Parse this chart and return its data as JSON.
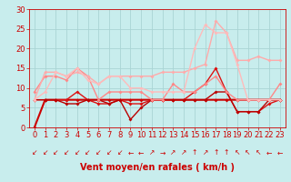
{
  "xlabel": "Vent moyen/en rafales ( km/h )",
  "xlim": [
    -0.5,
    23.5
  ],
  "ylim": [
    0,
    30
  ],
  "yticks": [
    0,
    5,
    10,
    15,
    20,
    25,
    30
  ],
  "xticks": [
    0,
    1,
    2,
    3,
    4,
    5,
    6,
    7,
    8,
    9,
    10,
    11,
    12,
    13,
    14,
    15,
    16,
    17,
    18,
    19,
    20,
    21,
    22,
    23
  ],
  "background_color": "#c8eded",
  "grid_color": "#aad4d4",
  "lines": [
    {
      "x": [
        0,
        1,
        2,
        3,
        4,
        5,
        6,
        7,
        8,
        9,
        10,
        11,
        12,
        13,
        14,
        15,
        16,
        17,
        18,
        19,
        20,
        21,
        22,
        23
      ],
      "y": [
        0,
        7,
        7,
        7,
        7,
        7,
        7,
        7,
        7,
        7,
        7,
        7,
        7,
        7,
        7,
        7,
        7,
        7,
        7,
        7,
        7,
        7,
        7,
        7
      ],
      "color": "#cc0000",
      "lw": 1.5,
      "marker": "D",
      "ms": 2.0
    },
    {
      "x": [
        0,
        1,
        2,
        3,
        4,
        5,
        6,
        7,
        8,
        9,
        10,
        11,
        12,
        13,
        14,
        15,
        16,
        17,
        18,
        19,
        20,
        21,
        22,
        23
      ],
      "y": [
        7,
        7,
        7,
        7,
        9,
        7,
        6,
        6,
        7,
        6,
        6,
        7,
        7,
        7,
        7,
        9,
        11,
        15,
        9,
        4,
        4,
        4,
        6,
        7
      ],
      "color": "#dd1111",
      "lw": 1.0,
      "marker": "D",
      "ms": 2.0
    },
    {
      "x": [
        0,
        1,
        2,
        3,
        4,
        5,
        6,
        7,
        8,
        9,
        10,
        11,
        12,
        13,
        14,
        15,
        16,
        17,
        18,
        19,
        20,
        21,
        22,
        23
      ],
      "y": [
        7,
        7,
        7,
        6,
        6,
        7,
        7,
        6,
        7,
        2,
        5,
        7,
        7,
        7,
        7,
        7,
        7,
        9,
        9,
        4,
        4,
        4,
        7,
        7
      ],
      "color": "#bb0000",
      "lw": 1.0,
      "marker": "D",
      "ms": 2.0
    },
    {
      "x": [
        0,
        1,
        2,
        3,
        4,
        5,
        6,
        7,
        8,
        9,
        10,
        11,
        12,
        13,
        14,
        15,
        16,
        17,
        18,
        19,
        20,
        21,
        22,
        23
      ],
      "y": [
        9,
        13,
        13,
        12,
        15,
        13,
        7,
        9,
        9,
        9,
        9,
        7,
        7,
        11,
        9,
        9,
        11,
        13,
        9,
        7,
        7,
        7,
        7,
        11
      ],
      "color": "#ff8888",
      "lw": 1.0,
      "marker": "D",
      "ms": 2.0
    },
    {
      "x": [
        0,
        1,
        2,
        3,
        4,
        5,
        6,
        7,
        8,
        9,
        10,
        11,
        12,
        13,
        14,
        15,
        16,
        17,
        18,
        19,
        20,
        21,
        22,
        23
      ],
      "y": [
        7,
        14,
        14,
        13,
        14,
        13,
        11,
        13,
        13,
        13,
        13,
        13,
        14,
        14,
        14,
        15,
        16,
        27,
        24,
        17,
        17,
        18,
        17,
        17
      ],
      "color": "#ffaaaa",
      "lw": 1.0,
      "marker": "D",
      "ms": 2.0
    },
    {
      "x": [
        0,
        1,
        2,
        3,
        4,
        5,
        6,
        7,
        8,
        9,
        10,
        11,
        12,
        13,
        14,
        15,
        16,
        17,
        18,
        19,
        20,
        21,
        22,
        23
      ],
      "y": [
        7,
        9,
        14,
        13,
        15,
        12,
        11,
        13,
        13,
        10,
        10,
        9,
        9,
        9,
        9,
        20,
        26,
        24,
        24,
        16,
        7,
        7,
        7,
        7
      ],
      "color": "#ffbbbb",
      "lw": 1.0,
      "marker": "D",
      "ms": 2.0
    }
  ],
  "wind_arrows": [
    "↙",
    "↙",
    "↙",
    "↙",
    "↙",
    "↙",
    "↙",
    "↙",
    "↙",
    "←",
    "←",
    "↗",
    "→",
    "↗",
    "↗",
    "↑",
    "↗",
    "↑",
    "↑",
    "↖",
    "↖",
    "↖",
    "←",
    "←"
  ],
  "arrow_color": "#cc0000",
  "xlabel_color": "#cc0000",
  "xlabel_fontsize": 7,
  "tick_fontsize": 6,
  "tick_color": "#cc0000"
}
